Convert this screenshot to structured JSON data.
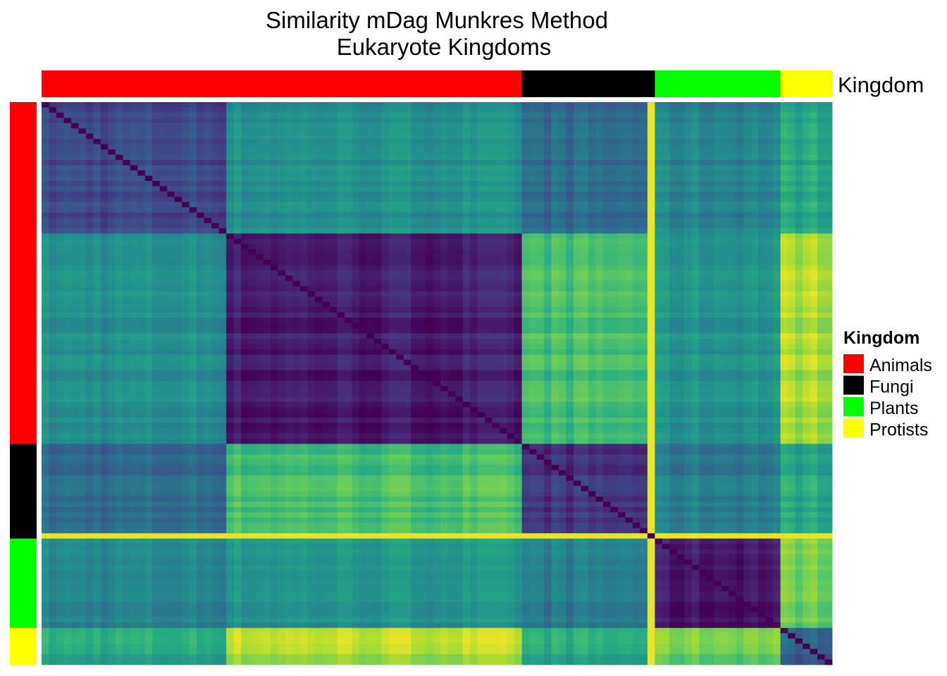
{
  "chart_data": {
    "type": "heatmap",
    "title_line1": "Similarity mDag Munkres Method",
    "title_line2": "Eukaryote Kingdoms",
    "annotation_label": "Kingdom",
    "legend": {
      "title": "Kingdom",
      "placement": "right",
      "entries": [
        {
          "label": "Animals",
          "color": "#FF0000"
        },
        {
          "label": "Fungi",
          "color": "#000000"
        },
        {
          "label": "Plants",
          "color": "#00FF00"
        },
        {
          "label": "Protists",
          "color": "#FFFF00"
        }
      ]
    },
    "colormap": "viridis",
    "kingdom_order": [
      "Animals",
      "Fungi",
      "Plants",
      "Protists"
    ],
    "kingdom_sizes": [
      65,
      18,
      17,
      7
    ],
    "blocks": [
      {
        "kingdom": "Animals",
        "size": 25
      },
      {
        "kingdom": "Animals",
        "size": 40
      },
      {
        "kingdom": "Fungi",
        "size": 18
      },
      {
        "kingdom": "Plants",
        "size": 17
      },
      {
        "kingdom": "Protists",
        "size": 7
      }
    ],
    "block_similarity": [
      [
        0.22,
        0.5,
        0.35,
        0.45,
        0.6
      ],
      [
        0.5,
        0.08,
        0.7,
        0.52,
        0.88
      ],
      [
        0.35,
        0.7,
        0.15,
        0.42,
        0.6
      ],
      [
        0.45,
        0.52,
        0.42,
        0.06,
        0.78
      ],
      [
        0.6,
        0.88,
        0.6,
        0.78,
        0.3
      ]
    ]
  }
}
